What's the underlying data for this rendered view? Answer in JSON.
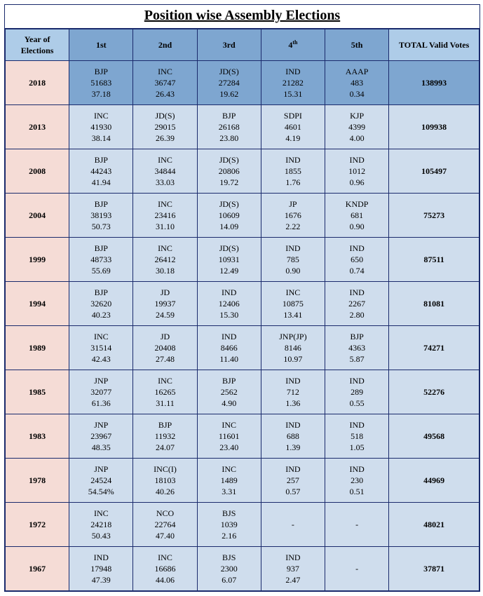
{
  "title": "Position wise Assembly Elections",
  "headers": {
    "year": "Year of Elections",
    "p1": "1st",
    "p2": "2nd",
    "p3": "3rd",
    "p4a": "4",
    "p4b": "th",
    "p5": "5th",
    "total": "TOTAL Valid Votes"
  },
  "rows": [
    {
      "year": "2018",
      "shade": "hi",
      "p1": [
        "BJP",
        "51683",
        "37.18"
      ],
      "p2": [
        "INC",
        "36747",
        "26.43"
      ],
      "p3": [
        "JD(S)",
        "27284",
        "19.62"
      ],
      "p4": [
        "IND",
        "21282",
        "15.31"
      ],
      "p5": [
        "AAAP",
        "483",
        "0.34"
      ],
      "total": "138993"
    },
    {
      "year": "2013",
      "shade": "lo",
      "p1": [
        "INC",
        "41930",
        "38.14"
      ],
      "p2": [
        "JD(S)",
        "29015",
        "26.39"
      ],
      "p3": [
        "BJP",
        "26168",
        "23.80"
      ],
      "p4": [
        "SDPI",
        "4601",
        "4.19"
      ],
      "p5": [
        "KJP",
        "4399",
        "4.00"
      ],
      "total": "109938"
    },
    {
      "year": "2008",
      "shade": "lo",
      "p1": [
        "BJP",
        "44243",
        "41.94"
      ],
      "p2": [
        "INC",
        "34844",
        "33.03"
      ],
      "p3": [
        "JD(S)",
        "20806",
        "19.72"
      ],
      "p4": [
        "IND",
        "1855",
        "1.76"
      ],
      "p5": [
        "IND",
        "1012",
        "0.96"
      ],
      "total": "105497"
    },
    {
      "year": "2004",
      "shade": "lo",
      "p1": [
        "BJP",
        "38193",
        "50.73"
      ],
      "p2": [
        "INC",
        "23416",
        "31.10"
      ],
      "p3": [
        "JD(S)",
        "10609",
        "14.09"
      ],
      "p4": [
        "JP",
        "1676",
        "2.22"
      ],
      "p5": [
        "KNDP",
        "681",
        "0.90"
      ],
      "total": "75273"
    },
    {
      "year": "1999",
      "shade": "lo",
      "p1": [
        "BJP",
        "48733",
        "55.69"
      ],
      "p2": [
        "INC",
        "26412",
        "30.18"
      ],
      "p3": [
        "JD(S)",
        "10931",
        "12.49"
      ],
      "p4": [
        "IND",
        "785",
        "0.90"
      ],
      "p5": [
        "IND",
        "650",
        "0.74"
      ],
      "total": "87511"
    },
    {
      "year": "1994",
      "shade": "lo",
      "p1": [
        "BJP",
        "32620",
        "40.23"
      ],
      "p2": [
        "JD",
        "19937",
        "24.59"
      ],
      "p3": [
        "IND",
        "12406",
        "15.30"
      ],
      "p4": [
        "INC",
        "10875",
        "13.41"
      ],
      "p5": [
        "IND",
        "2267",
        "2.80"
      ],
      "total": "81081"
    },
    {
      "year": "1989",
      "shade": "lo",
      "p1": [
        "INC",
        "31514",
        "42.43"
      ],
      "p2": [
        "JD",
        "20408",
        "27.48"
      ],
      "p3": [
        "IND",
        "8466",
        "11.40"
      ],
      "p4": [
        "JNP(JP)",
        "8146",
        "10.97"
      ],
      "p5": [
        "BJP",
        "4363",
        "5.87"
      ],
      "total": "74271"
    },
    {
      "year": "1985",
      "shade": "lo",
      "p1": [
        "JNP",
        "32077",
        "61.36"
      ],
      "p2": [
        "INC",
        "16265",
        "31.11"
      ],
      "p3": [
        "BJP",
        "2562",
        "4.90"
      ],
      "p4": [
        "IND",
        "712",
        "1.36"
      ],
      "p5": [
        "IND",
        "289",
        "0.55"
      ],
      "total": "52276"
    },
    {
      "year": "1983",
      "shade": "lo",
      "p1": [
        "JNP",
        "23967",
        "48.35"
      ],
      "p2": [
        "BJP",
        "11932",
        "24.07"
      ],
      "p3": [
        "INC",
        "11601",
        "23.40"
      ],
      "p4": [
        "IND",
        "688",
        "1.39"
      ],
      "p5": [
        "IND",
        "518",
        "1.05"
      ],
      "total": "49568"
    },
    {
      "year": "1978",
      "shade": "lo",
      "p1": [
        "JNP",
        "24524",
        "54.54%"
      ],
      "p2": [
        "INC(I)",
        "18103",
        "40.26"
      ],
      "p3": [
        "INC",
        "1489",
        "3.31"
      ],
      "p4": [
        "IND",
        "257",
        "0.57"
      ],
      "p5": [
        "IND",
        "230",
        "0.51"
      ],
      "total": "44969"
    },
    {
      "year": "1972",
      "shade": "lo",
      "p1": [
        "INC",
        "24218",
        "50.43"
      ],
      "p2": [
        "NCO",
        "22764",
        "47.40"
      ],
      "p3": [
        "BJS",
        "1039",
        "2.16"
      ],
      "p4": [
        "-",
        "",
        ""
      ],
      "p5": [
        "-",
        "",
        ""
      ],
      "total": "48021"
    },
    {
      "year": "1967",
      "shade": "lo",
      "p1": [
        "IND",
        "17948",
        "47.39"
      ],
      "p2": [
        "INC",
        "16686",
        "44.06"
      ],
      "p3": [
        "BJS",
        "2300",
        "6.07"
      ],
      "p4": [
        "IND",
        "937",
        "2.47"
      ],
      "p5": [
        "-",
        "",
        ""
      ],
      "total": "37871"
    }
  ]
}
